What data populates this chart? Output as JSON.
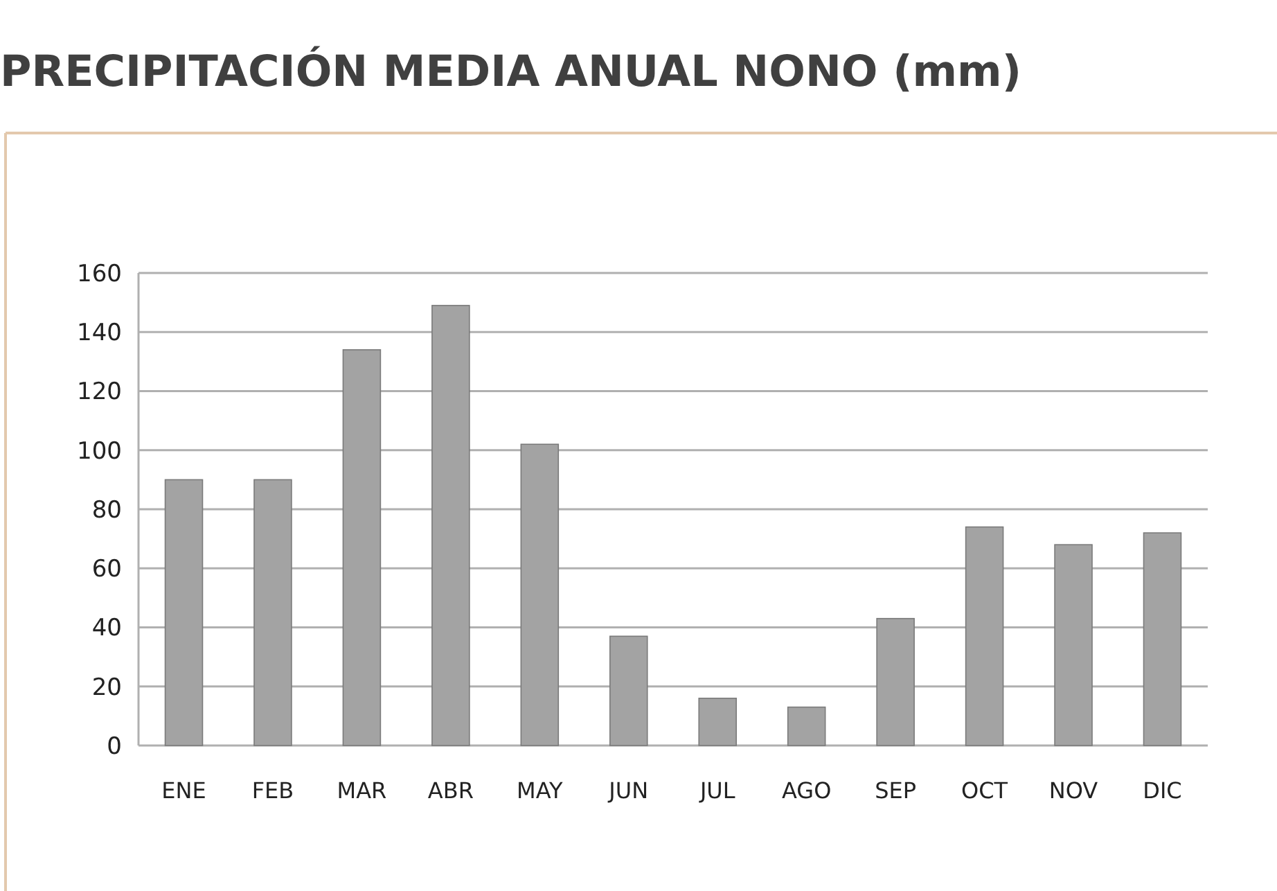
{
  "chart_data": {
    "type": "bar",
    "title": "PRECIPITACIÓN MEDIA ANUAL NONO (mm)",
    "categories": [
      "ENE",
      "FEB",
      "MAR",
      "ABR",
      "MAY",
      "JUN",
      "JUL",
      "AGO",
      "SEP",
      "OCT",
      "NOV",
      "DIC"
    ],
    "values": [
      90,
      90,
      134,
      149,
      102,
      37,
      16,
      13,
      43,
      74,
      68,
      72
    ],
    "color": "#a3a3a3",
    "ylim": [
      0,
      160
    ],
    "yticks": [
      0,
      20,
      40,
      60,
      80,
      100,
      120,
      140,
      160
    ],
    "grid": "y"
  }
}
